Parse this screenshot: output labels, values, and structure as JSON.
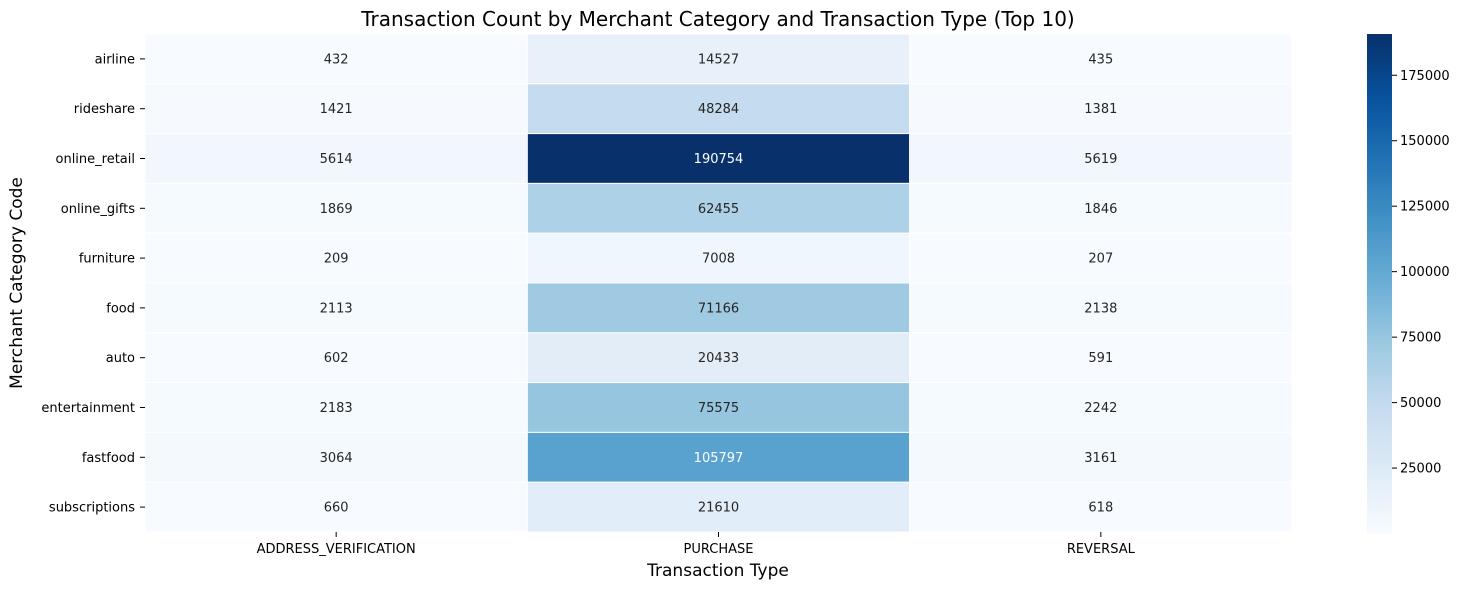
{
  "chart_data": {
    "type": "heatmap",
    "title": "Transaction Count by Merchant Category and Transaction Type (Top 10)",
    "xlabel": "Transaction Type",
    "ylabel": "Merchant Category Code",
    "columns": [
      "ADDRESS_VERIFICATION",
      "PURCHASE",
      "REVERSAL"
    ],
    "rows": [
      "airline",
      "rideshare",
      "online_retail",
      "online_gifts",
      "furniture",
      "food",
      "auto",
      "entertainment",
      "fastfood",
      "subscriptions"
    ],
    "values": [
      [
        432,
        14527,
        435
      ],
      [
        1421,
        48284,
        1381
      ],
      [
        5614,
        190754,
        5619
      ],
      [
        1869,
        62455,
        1846
      ],
      [
        209,
        7008,
        207
      ],
      [
        2113,
        71166,
        2138
      ],
      [
        602,
        20433,
        591
      ],
      [
        2183,
        75575,
        2242
      ],
      [
        3064,
        105797,
        3161
      ],
      [
        660,
        21610,
        618
      ]
    ],
    "colormap": "Blues",
    "vmin": 207,
    "vmax": 190754,
    "colorbar_ticks": [
      25000,
      50000,
      75000,
      100000,
      125000,
      150000,
      175000
    ],
    "colorbar_tick_labels": [
      "25000",
      "50000",
      "75000",
      "100000",
      "125000",
      "150000",
      "175000"
    ]
  }
}
